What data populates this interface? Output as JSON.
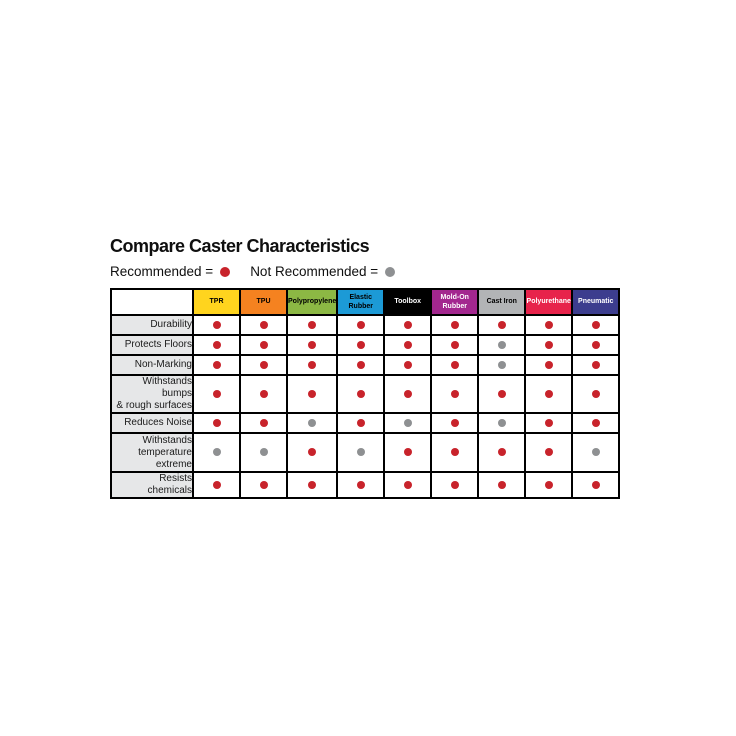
{
  "title": "Compare Caster Characteristics",
  "legend": {
    "recommended_label": "Recommended =",
    "not_recommended_label": "Not Recommended =",
    "recommended_color": "#c8232b",
    "not_recommended_color": "#8e9092"
  },
  "chart_data": {
    "type": "table",
    "title": "Compare Caster Characteristics",
    "legend": {
      "recommended": "red dot",
      "not_recommended": "gray dot"
    },
    "value_colors": {
      "recommended": "#c8232b",
      "not_recommended": "#8e9092"
    },
    "columns": [
      {
        "label": "TPR",
        "lines": [
          "TPR"
        ],
        "bg": "#ffd41e",
        "text_color": "#000000"
      },
      {
        "label": "TPU",
        "lines": [
          "TPU"
        ],
        "bg": "#f58220",
        "text_color": "#000000"
      },
      {
        "label": "Polypropylene",
        "lines": [
          "Polypropylene"
        ],
        "bg": "#8cb844",
        "text_color": "#000000"
      },
      {
        "label": "Elastic Rubber",
        "lines": [
          "Elastic",
          "Rubber"
        ],
        "bg": "#1c9ad6",
        "text_color": "#000000"
      },
      {
        "label": "Toolbox",
        "lines": [
          "Toolbox"
        ],
        "bg": "#000000",
        "text_color": "#ffffff"
      },
      {
        "label": "Mold-On Rubber",
        "lines": [
          "Mold-On",
          "Rubber"
        ],
        "bg": "#a3278f",
        "text_color": "#ffffff"
      },
      {
        "label": "Cast Iron",
        "lines": [
          "Cast Iron"
        ],
        "bg": "#b2b4b6",
        "text_color": "#000000"
      },
      {
        "label": "Polyurethane",
        "lines": [
          "Polyurethane"
        ],
        "bg": "#e7234b",
        "text_color": "#ffffff"
      },
      {
        "label": "Pneumatic",
        "lines": [
          "Pneumatic"
        ],
        "bg": "#3c3d8e",
        "text_color": "#ffffff"
      }
    ],
    "rows": [
      {
        "label": "Durability",
        "lines": [
          "Durability"
        ],
        "values": [
          "recommended",
          "recommended",
          "recommended",
          "recommended",
          "recommended",
          "recommended",
          "recommended",
          "recommended",
          "recommended"
        ]
      },
      {
        "label": "Protects Floors",
        "lines": [
          "Protects Floors"
        ],
        "values": [
          "recommended",
          "recommended",
          "recommended",
          "recommended",
          "recommended",
          "recommended",
          "not_recommended",
          "recommended",
          "recommended"
        ]
      },
      {
        "label": "Non-Marking",
        "lines": [
          "Non-Marking"
        ],
        "values": [
          "recommended",
          "recommended",
          "recommended",
          "recommended",
          "recommended",
          "recommended",
          "not_recommended",
          "recommended",
          "recommended"
        ]
      },
      {
        "label": "Withstands bumps & rough surfaces",
        "lines": [
          "Withstands bumps",
          "& rough surfaces"
        ],
        "values": [
          "recommended",
          "recommended",
          "recommended",
          "recommended",
          "recommended",
          "recommended",
          "recommended",
          "recommended",
          "recommended"
        ]
      },
      {
        "label": "Reduces Noise",
        "lines": [
          "Reduces Noise"
        ],
        "values": [
          "recommended",
          "recommended",
          "not_recommended",
          "recommended",
          "not_recommended",
          "recommended",
          "not_recommended",
          "recommended",
          "recommended"
        ]
      },
      {
        "label": "Withstands temperature extreme",
        "lines": [
          "Withstands",
          "temperature",
          "extreme"
        ],
        "values": [
          "not_recommended",
          "not_recommended",
          "recommended",
          "not_recommended",
          "recommended",
          "recommended",
          "recommended",
          "recommended",
          "not_recommended"
        ]
      },
      {
        "label": "Resists chemicals",
        "lines": [
          "Resists chemicals"
        ],
        "values": [
          "recommended",
          "recommended",
          "recommended",
          "recommended",
          "recommended",
          "recommended",
          "recommended",
          "recommended",
          "recommended"
        ]
      }
    ]
  }
}
